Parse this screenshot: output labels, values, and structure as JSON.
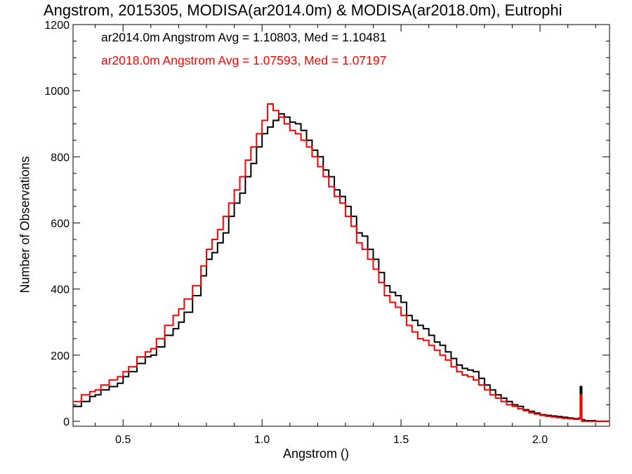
{
  "chart_data": {
    "type": "line",
    "title": "Angstrom, 2015305, MODISA(ar2014.0m) & MODISA(ar2018.0m), Eutrophi",
    "xlabel": "Angstrom ()",
    "ylabel": "Number of Observations",
    "xlim": [
      0.32,
      2.25
    ],
    "ylim": [
      -15,
      1200
    ],
    "x_ticks": [
      0.5,
      1.0,
      1.5,
      2.0
    ],
    "x_tick_labels": [
      "0.5",
      "1.0",
      "1.5",
      "2.0"
    ],
    "y_ticks": [
      0,
      200,
      400,
      600,
      800,
      1000,
      1200
    ],
    "y_tick_labels": [
      "0",
      "200",
      "400",
      "600",
      "800",
      "1000",
      "1200"
    ],
    "grid": false,
    "step": true,
    "annotations": [
      {
        "text": "ar2014.0m Angstrom Avg = 1.10803, Med = 1.10481",
        "color": "#000000"
      },
      {
        "text": "ar2018.0m Angstrom Avg = 1.07593, Med = 1.07197",
        "color": "#ff0000"
      }
    ],
    "series": [
      {
        "color": "#000000",
        "points": [
          [
            0.32,
            45
          ],
          [
            0.35,
            60
          ],
          [
            0.38,
            75
          ],
          [
            0.4,
            80
          ],
          [
            0.42,
            95
          ],
          [
            0.45,
            105
          ],
          [
            0.48,
            115
          ],
          [
            0.5,
            135
          ],
          [
            0.52,
            150
          ],
          [
            0.55,
            175
          ],
          [
            0.58,
            195
          ],
          [
            0.6,
            200
          ],
          [
            0.62,
            225
          ],
          [
            0.65,
            260
          ],
          [
            0.68,
            280
          ],
          [
            0.7,
            300
          ],
          [
            0.72,
            330
          ],
          [
            0.75,
            380
          ],
          [
            0.78,
            440
          ],
          [
            0.8,
            490
          ],
          [
            0.82,
            510
          ],
          [
            0.84,
            540
          ],
          [
            0.86,
            570
          ],
          [
            0.88,
            620
          ],
          [
            0.9,
            660
          ],
          [
            0.92,
            690
          ],
          [
            0.94,
            740
          ],
          [
            0.96,
            780
          ],
          [
            0.98,
            830
          ],
          [
            1.0,
            870
          ],
          [
            1.02,
            890
          ],
          [
            1.04,
            910
          ],
          [
            1.06,
            930
          ],
          [
            1.08,
            920
          ],
          [
            1.1,
            905
          ],
          [
            1.12,
            900
          ],
          [
            1.14,
            880
          ],
          [
            1.16,
            850
          ],
          [
            1.18,
            820
          ],
          [
            1.2,
            800
          ],
          [
            1.22,
            760
          ],
          [
            1.24,
            740
          ],
          [
            1.26,
            700
          ],
          [
            1.28,
            680
          ],
          [
            1.3,
            650
          ],
          [
            1.32,
            620
          ],
          [
            1.34,
            570
          ],
          [
            1.36,
            560
          ],
          [
            1.38,
            520
          ],
          [
            1.4,
            490
          ],
          [
            1.42,
            450
          ],
          [
            1.44,
            410
          ],
          [
            1.46,
            390
          ],
          [
            1.48,
            380
          ],
          [
            1.5,
            360
          ],
          [
            1.52,
            320
          ],
          [
            1.54,
            305
          ],
          [
            1.56,
            290
          ],
          [
            1.58,
            280
          ],
          [
            1.6,
            260
          ],
          [
            1.62,
            240
          ],
          [
            1.64,
            230
          ],
          [
            1.66,
            210
          ],
          [
            1.68,
            190
          ],
          [
            1.7,
            170
          ],
          [
            1.72,
            160
          ],
          [
            1.74,
            155
          ],
          [
            1.76,
            150
          ],
          [
            1.78,
            130
          ],
          [
            1.8,
            110
          ],
          [
            1.82,
            95
          ],
          [
            1.84,
            80
          ],
          [
            1.86,
            70
          ],
          [
            1.88,
            60
          ],
          [
            1.9,
            50
          ],
          [
            1.92,
            45
          ],
          [
            1.94,
            35
          ],
          [
            1.96,
            30
          ],
          [
            1.98,
            25
          ],
          [
            2.0,
            20
          ],
          [
            2.02,
            18
          ],
          [
            2.04,
            16
          ],
          [
            2.06,
            14
          ],
          [
            2.08,
            12
          ],
          [
            2.1,
            10
          ],
          [
            2.12,
            8
          ],
          [
            2.14,
            10
          ],
          [
            2.145,
            105
          ],
          [
            2.15,
            5
          ],
          [
            2.16,
            2
          ],
          [
            2.2,
            0
          ],
          [
            2.25,
            0
          ]
        ]
      },
      {
        "color": "#ff0000",
        "points": [
          [
            0.32,
            60
          ],
          [
            0.35,
            80
          ],
          [
            0.38,
            90
          ],
          [
            0.4,
            95
          ],
          [
            0.42,
            110
          ],
          [
            0.45,
            125
          ],
          [
            0.48,
            135
          ],
          [
            0.5,
            150
          ],
          [
            0.52,
            165
          ],
          [
            0.55,
            195
          ],
          [
            0.58,
            210
          ],
          [
            0.6,
            220
          ],
          [
            0.62,
            250
          ],
          [
            0.65,
            290
          ],
          [
            0.68,
            320
          ],
          [
            0.7,
            340
          ],
          [
            0.72,
            370
          ],
          [
            0.75,
            410
          ],
          [
            0.78,
            470
          ],
          [
            0.8,
            520
          ],
          [
            0.82,
            550
          ],
          [
            0.84,
            580
          ],
          [
            0.86,
            620
          ],
          [
            0.88,
            660
          ],
          [
            0.9,
            700
          ],
          [
            0.92,
            740
          ],
          [
            0.94,
            790
          ],
          [
            0.96,
            830
          ],
          [
            0.98,
            870
          ],
          [
            1.0,
            910
          ],
          [
            1.02,
            960
          ],
          [
            1.04,
            940
          ],
          [
            1.06,
            920
          ],
          [
            1.08,
            900
          ],
          [
            1.1,
            880
          ],
          [
            1.12,
            870
          ],
          [
            1.14,
            850
          ],
          [
            1.16,
            830
          ],
          [
            1.18,
            800
          ],
          [
            1.2,
            770
          ],
          [
            1.22,
            740
          ],
          [
            1.24,
            710
          ],
          [
            1.26,
            680
          ],
          [
            1.28,
            660
          ],
          [
            1.3,
            620
          ],
          [
            1.32,
            590
          ],
          [
            1.34,
            540
          ],
          [
            1.36,
            520
          ],
          [
            1.38,
            490
          ],
          [
            1.4,
            460
          ],
          [
            1.42,
            420
          ],
          [
            1.44,
            380
          ],
          [
            1.46,
            360
          ],
          [
            1.48,
            345
          ],
          [
            1.5,
            320
          ],
          [
            1.52,
            290
          ],
          [
            1.54,
            270
          ],
          [
            1.56,
            250
          ],
          [
            1.58,
            245
          ],
          [
            1.6,
            230
          ],
          [
            1.62,
            215
          ],
          [
            1.64,
            200
          ],
          [
            1.66,
            185
          ],
          [
            1.68,
            165
          ],
          [
            1.7,
            150
          ],
          [
            1.72,
            140
          ],
          [
            1.74,
            135
          ],
          [
            1.76,
            125
          ],
          [
            1.78,
            110
          ],
          [
            1.8,
            95
          ],
          [
            1.82,
            80
          ],
          [
            1.84,
            70
          ],
          [
            1.86,
            60
          ],
          [
            1.88,
            50
          ],
          [
            1.9,
            45
          ],
          [
            1.92,
            38
          ],
          [
            1.94,
            32
          ],
          [
            1.96,
            26
          ],
          [
            1.98,
            22
          ],
          [
            2.0,
            18
          ],
          [
            2.02,
            15
          ],
          [
            2.04,
            13
          ],
          [
            2.06,
            11
          ],
          [
            2.08,
            9
          ],
          [
            2.1,
            8
          ],
          [
            2.12,
            6
          ],
          [
            2.14,
            8
          ],
          [
            2.145,
            80
          ],
          [
            2.15,
            0
          ],
          [
            2.2,
            0
          ],
          [
            2.25,
            0
          ]
        ]
      }
    ]
  }
}
